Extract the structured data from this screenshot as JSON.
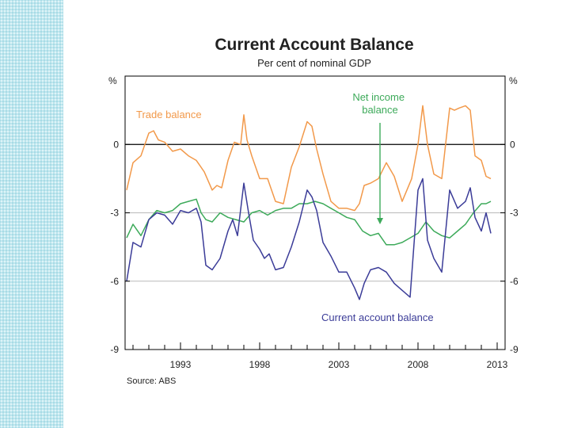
{
  "colors": {
    "trade": "#f2994a",
    "net_income": "#3daa5a",
    "current_account": "#3b3c98",
    "grid": "#b9b9b9",
    "zero_line": "#000000"
  },
  "chart_data": {
    "type": "line",
    "title": "Current Account Balance",
    "subtitle": "Per cent of nominal GDP",
    "ylabel_left": "%",
    "ylabel_right": "%",
    "source": "Source: ABS",
    "xlim": [
      1989.5,
      2013.5
    ],
    "ylim": [
      -9,
      3
    ],
    "yticks": [
      0,
      -3,
      -6,
      -9
    ],
    "ytick_labels": [
      "0",
      "-3",
      "-6",
      "-9"
    ],
    "xticks": [
      1993,
      1998,
      2003,
      2008,
      2013
    ],
    "xtick_labels": [
      "1993",
      "1998",
      "2003",
      "2008",
      "2013"
    ],
    "grid": true,
    "series": [
      {
        "name": "Trade balance",
        "color_key": "trade",
        "x": [
          1989.6,
          1990,
          1990.5,
          1991,
          1991.3,
          1991.6,
          1992,
          1992.5,
          1993,
          1993.5,
          1994,
          1994.5,
          1995,
          1995.3,
          1995.6,
          1996,
          1996.4,
          1996.8,
          1997,
          1997.2,
          1997.5,
          1998,
          1998.5,
          1999,
          1999.5,
          2000,
          2000.5,
          2001,
          2001.3,
          2001.6,
          2002,
          2002.5,
          2003,
          2003.5,
          2004,
          2004.3,
          2004.6,
          2005,
          2005.5,
          2006,
          2006.5,
          2007,
          2007.3,
          2007.6,
          2008,
          2008.3,
          2008.6,
          2009,
          2009.5,
          2010,
          2010.3,
          2010.6,
          2011,
          2011.3,
          2011.6,
          2012,
          2012.3,
          2012.6
        ],
        "y": [
          -2.0,
          -0.8,
          -0.5,
          0.5,
          0.6,
          0.2,
          0.1,
          -0.3,
          -0.2,
          -0.5,
          -0.7,
          -1.2,
          -2.0,
          -1.8,
          -1.9,
          -0.7,
          0.1,
          0.0,
          1.3,
          0.2,
          -0.5,
          -1.5,
          -1.5,
          -2.5,
          -2.6,
          -1.0,
          -0.1,
          1.0,
          0.8,
          -0.2,
          -1.3,
          -2.5,
          -2.8,
          -2.8,
          -2.9,
          -2.6,
          -1.8,
          -1.7,
          -1.5,
          -0.8,
          -1.4,
          -2.5,
          -2.0,
          -1.5,
          0.0,
          1.7,
          0.0,
          -1.3,
          -1.5,
          1.6,
          1.5,
          1.6,
          1.7,
          1.5,
          -0.5,
          -0.7,
          -1.4,
          -1.5
        ]
      },
      {
        "name": "Net income balance",
        "color_key": "net_income",
        "x": [
          1989.6,
          1990,
          1990.5,
          1991,
          1991.5,
          1992,
          1992.5,
          1993,
          1993.5,
          1994,
          1994.3,
          1994.6,
          1995,
          1995.5,
          1996,
          1996.5,
          1997,
          1997.5,
          1998,
          1998.5,
          1999,
          1999.5,
          2000,
          2000.5,
          2001,
          2001.5,
          2002,
          2002.5,
          2003,
          2003.5,
          2004,
          2004.5,
          2005,
          2005.5,
          2006,
          2006.5,
          2007,
          2007.5,
          2008,
          2008.5,
          2009,
          2009.5,
          2010,
          2010.5,
          2011,
          2011.5,
          2012,
          2012.3,
          2012.6
        ],
        "y": [
          -4.1,
          -3.5,
          -4.0,
          -3.3,
          -2.9,
          -3.0,
          -2.9,
          -2.6,
          -2.5,
          -2.4,
          -3.0,
          -3.3,
          -3.4,
          -3.0,
          -3.2,
          -3.3,
          -3.4,
          -3.0,
          -2.9,
          -3.1,
          -2.9,
          -2.8,
          -2.8,
          -2.6,
          -2.6,
          -2.5,
          -2.6,
          -2.8,
          -3.0,
          -3.2,
          -3.3,
          -3.8,
          -4.0,
          -3.9,
          -4.4,
          -4.4,
          -4.3,
          -4.1,
          -3.9,
          -3.4,
          -3.8,
          -4.0,
          -4.1,
          -3.8,
          -3.5,
          -3.0,
          -2.6,
          -2.6,
          -2.5
        ]
      },
      {
        "name": "Current account balance",
        "color_key": "current_account",
        "x": [
          1989.6,
          1990,
          1990.5,
          1991,
          1991.5,
          1992,
          1992.5,
          1993,
          1993.5,
          1994,
          1994.3,
          1994.6,
          1995,
          1995.5,
          1996,
          1996.3,
          1996.6,
          1997,
          1997.3,
          1997.6,
          1998,
          1998.3,
          1998.6,
          1999,
          1999.5,
          2000,
          2000.5,
          2001,
          2001.3,
          2001.6,
          2002,
          2002.5,
          2003,
          2003.5,
          2004,
          2004.3,
          2004.6,
          2005,
          2005.5,
          2006,
          2006.5,
          2007,
          2007.5,
          2008,
          2008.3,
          2008.6,
          2009,
          2009.5,
          2010,
          2010.5,
          2011,
          2011.3,
          2011.6,
          2012,
          2012.3,
          2012.6
        ],
        "y": [
          -6.0,
          -4.3,
          -4.5,
          -3.3,
          -3.0,
          -3.1,
          -3.5,
          -2.9,
          -3.0,
          -2.8,
          -3.4,
          -5.3,
          -5.5,
          -5.0,
          -3.8,
          -3.3,
          -4.0,
          -1.7,
          -3.0,
          -4.2,
          -4.6,
          -5.0,
          -4.8,
          -5.5,
          -5.4,
          -4.5,
          -3.4,
          -2.0,
          -2.3,
          -2.9,
          -4.3,
          -4.9,
          -5.6,
          -5.6,
          -6.3,
          -6.8,
          -6.1,
          -5.5,
          -5.4,
          -5.6,
          -6.1,
          -6.4,
          -6.7,
          -2.0,
          -1.5,
          -4.2,
          -5.0,
          -5.6,
          -2.0,
          -2.8,
          -2.5,
          -1.9,
          -3.2,
          -3.8,
          -3.0,
          -3.9
        ]
      }
    ],
    "annotations": [
      {
        "text": "Trade balance",
        "series": "trade"
      },
      {
        "text": "Net income\nbalance",
        "series": "net_income"
      },
      {
        "text": "Current account balance",
        "series": "current_account"
      }
    ]
  }
}
